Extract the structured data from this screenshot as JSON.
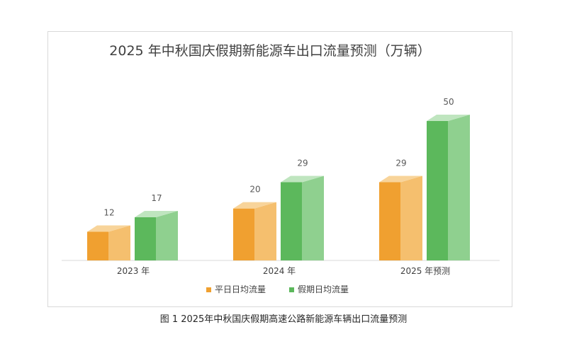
{
  "caption": "图 1   2025年中秋国庆假期高速公路新能源车辆出口流量预测",
  "chart_data": {
    "type": "bar",
    "title": "2025 年中秋国庆假期新能源车出口流量预测（万辆）",
    "categories": [
      "2023 年",
      "2024 年",
      "2025 年预测"
    ],
    "series": [
      {
        "name": "平日日均流量",
        "values": [
          12,
          20,
          29
        ],
        "color": "#f0a030",
        "color_light": "#f5bf6e",
        "color_top": "#f8d49a"
      },
      {
        "name": "假期日均流量",
        "values": [
          17,
          29,
          50
        ],
        "color": "#5cb85c",
        "color_light": "#8fd08f",
        "color_top": "#bfe5bf"
      }
    ],
    "ylim": [
      0,
      50
    ],
    "legend_position": "bottom",
    "grid": false
  }
}
